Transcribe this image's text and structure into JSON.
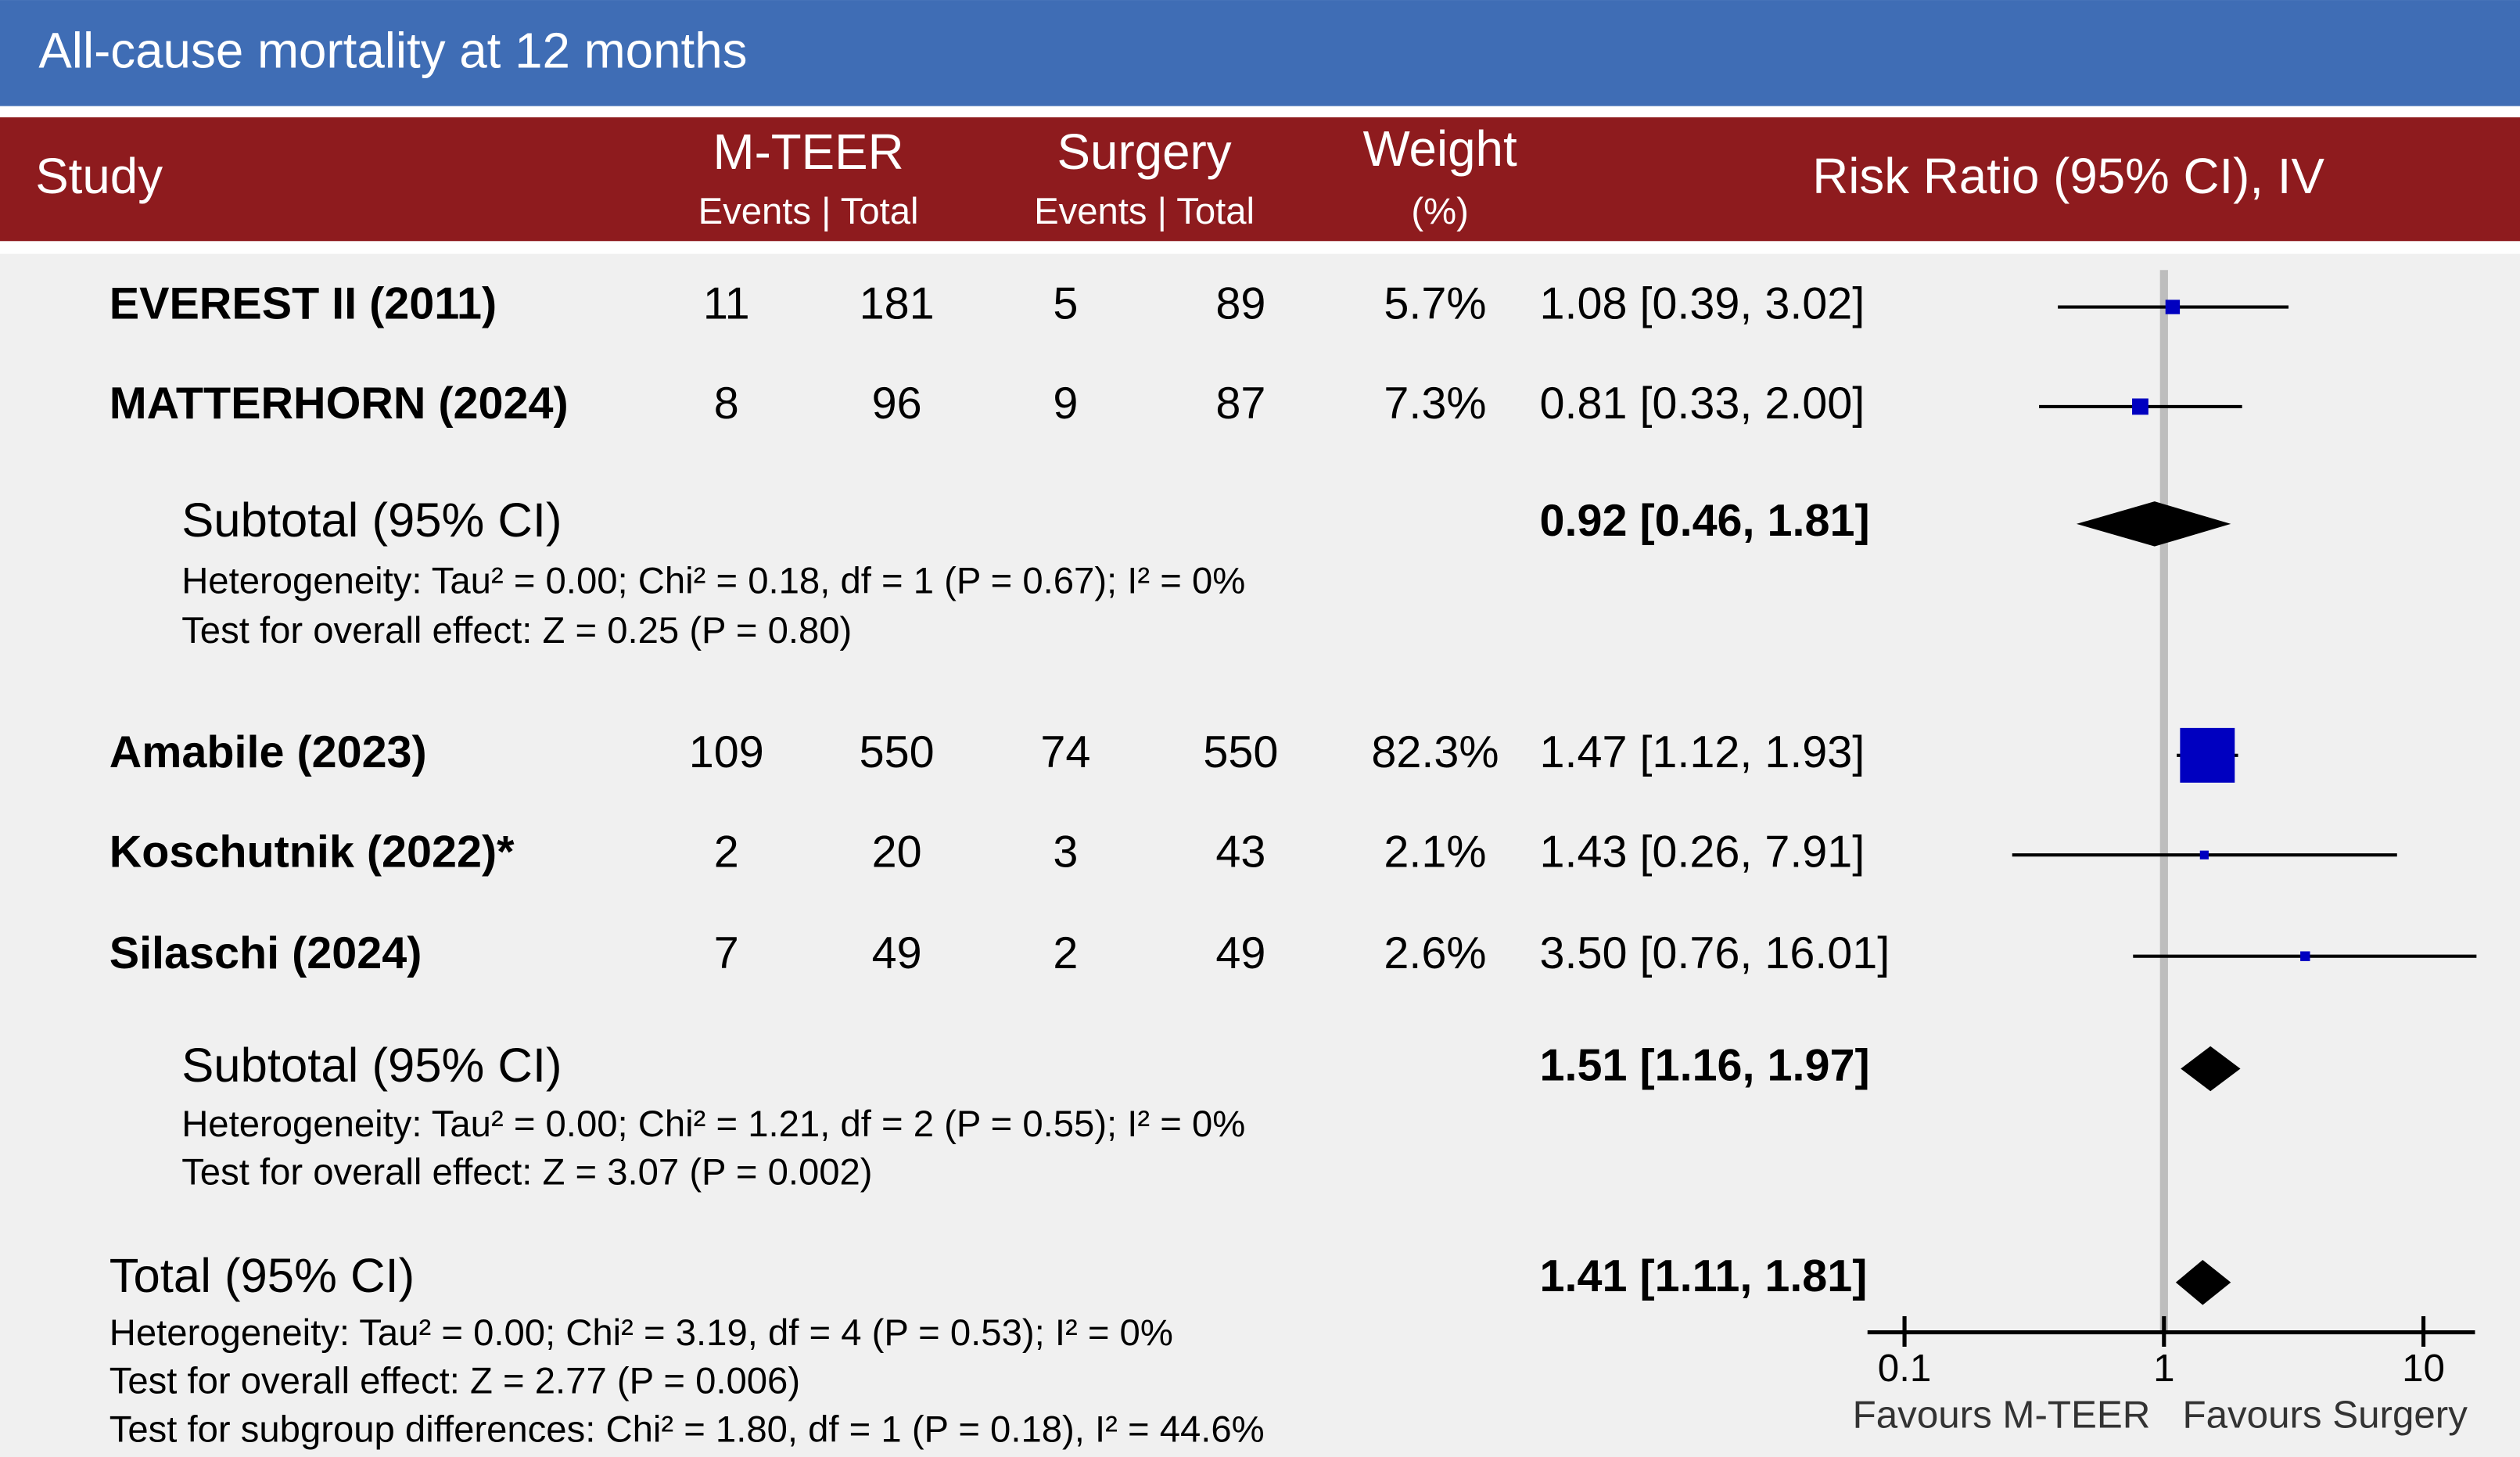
{
  "chart_data": {
    "type": "forest",
    "title": "All-cause mortality at 12 months",
    "columns": {
      "study": "Study",
      "group1": {
        "name": "M-TEER",
        "sub": "Events | Total"
      },
      "group2": {
        "name": "Surgery",
        "sub": "Events | Total"
      },
      "weight": {
        "name": "Weight",
        "sub": "(%)"
      },
      "effect": "Risk Ratio (95% CI), IV"
    },
    "subgroups": [
      {
        "studies": [
          {
            "name": "EVEREST II (2011)",
            "events1": 11,
            "total1": 181,
            "events2": 5,
            "total2": 89,
            "weight": 5.7,
            "weight_label": "5.7%",
            "rr": 1.08,
            "lower": 0.39,
            "upper": 3.02,
            "rr_label": "1.08 [0.39, 3.02]"
          },
          {
            "name": "MATTERHORN (2024)",
            "events1": 8,
            "total1": 96,
            "events2": 9,
            "total2": 87,
            "weight": 7.3,
            "weight_label": "7.3%",
            "rr": 0.81,
            "lower": 0.33,
            "upper": 2.0,
            "rr_label": "0.81 [0.33, 2.00]"
          }
        ],
        "subtotal": {
          "label": "Subtotal (95% CI)",
          "rr": 0.92,
          "lower": 0.46,
          "upper": 1.81,
          "rr_label": "0.92 [0.46, 1.81]"
        },
        "heterogeneity": "Heterogeneity: Tau² = 0.00; Chi² = 0.18, df = 1 (P = 0.67); I² = 0%",
        "overall_effect": "Test for overall effect: Z = 0.25 (P = 0.80)"
      },
      {
        "studies": [
          {
            "name": "Amabile (2023)",
            "events1": 109,
            "total1": 550,
            "events2": 74,
            "total2": 550,
            "weight": 82.3,
            "weight_label": "82.3%",
            "rr": 1.47,
            "lower": 1.12,
            "upper": 1.93,
            "rr_label": "1.47 [1.12, 1.93]"
          },
          {
            "name": "Koschutnik (2022)*",
            "events1": 2,
            "total1": 20,
            "events2": 3,
            "total2": 43,
            "weight": 2.1,
            "weight_label": "2.1%",
            "rr": 1.43,
            "lower": 0.26,
            "upper": 7.91,
            "rr_label": "1.43 [0.26, 7.91]"
          },
          {
            "name": "Silaschi (2024)",
            "events1": 7,
            "total1": 49,
            "events2": 2,
            "total2": 49,
            "weight": 2.6,
            "weight_label": "2.6%",
            "rr": 3.5,
            "lower": 0.76,
            "upper": 16.01,
            "rr_label": "3.50 [0.76, 16.01]"
          }
        ],
        "subtotal": {
          "label": "Subtotal (95% CI)",
          "rr": 1.51,
          "lower": 1.16,
          "upper": 1.97,
          "rr_label": "1.51 [1.16, 1.97]"
        },
        "heterogeneity": "Heterogeneity: Tau² = 0.00; Chi² = 1.21, df = 2 (P = 0.55); I² = 0%",
        "overall_effect": "Test for overall effect: Z = 3.07 (P = 0.002)"
      }
    ],
    "total": {
      "label": "Total (95% CI)",
      "rr": 1.41,
      "lower": 1.11,
      "upper": 1.81,
      "rr_label": "1.41 [1.11, 1.81]",
      "heterogeneity": "Heterogeneity: Tau² = 0.00; Chi² = 3.19, df = 4 (P = 0.53); I² = 0%",
      "overall_effect": "Test for overall effect: Z = 2.77 (P = 0.006)",
      "subgroup_differences": "Test for subgroup differences: Chi² = 1.80, df = 1 (P = 0.18), I² = 44.6%"
    },
    "xlim": [
      0.072,
      15.8
    ],
    "xticks": [
      0.1,
      1,
      10
    ],
    "log_scale": true,
    "reference_line": 1,
    "x_labels": [
      "Favours M-TEER",
      "Favours Surgery"
    ],
    "marker_color": "#0000c0",
    "diamond_color": "#000000"
  }
}
